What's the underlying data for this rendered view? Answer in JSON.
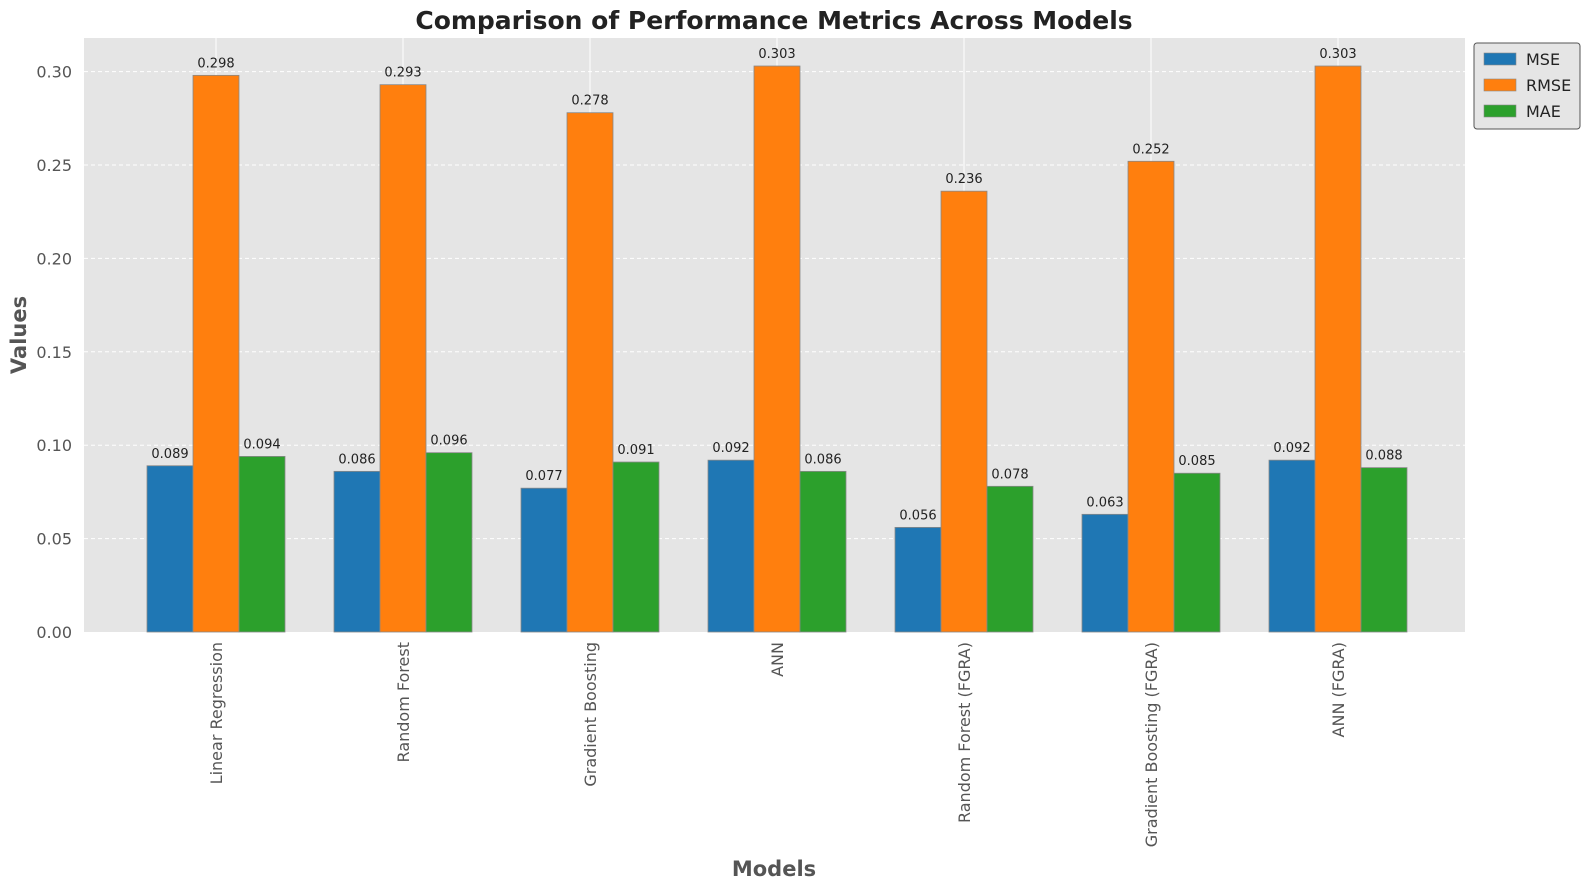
{
  "chart_data": {
    "type": "bar",
    "title": "Comparison of Performance Metrics Across Models",
    "xlabel": "Models",
    "ylabel": "Values",
    "categories": [
      "Linear Regression",
      "Random Forest",
      "Gradient Boosting",
      "ANN",
      "Random Forest (FGRA)",
      "Gradient Boosting (FGRA)",
      "ANN (FGRA)"
    ],
    "series": [
      {
        "name": "MSE",
        "color": "#1f77b4",
        "values": [
          0.089,
          0.086,
          0.077,
          0.092,
          0.056,
          0.063,
          0.092
        ],
        "labels": [
          "0.089",
          "0.086",
          "0.077",
          "0.092",
          "0.056",
          "0.063",
          "0.092"
        ]
      },
      {
        "name": "RMSE",
        "color": "#ff7f0e",
        "values": [
          0.298,
          0.293,
          0.278,
          0.303,
          0.236,
          0.252,
          0.303
        ],
        "labels": [
          "0.298",
          "0.293",
          "0.278",
          "0.303",
          "0.236",
          "0.252",
          "0.303"
        ]
      },
      {
        "name": "MAE",
        "color": "#2ca02c",
        "values": [
          0.094,
          0.096,
          0.091,
          0.086,
          0.078,
          0.085,
          0.088
        ],
        "labels": [
          "0.094",
          "0.096",
          "0.091",
          "0.086",
          "0.078",
          "0.085",
          "0.088"
        ]
      }
    ],
    "yticks": [
      "0.00",
      "0.05",
      "0.10",
      "0.15",
      "0.20",
      "0.25",
      "0.30"
    ],
    "ylim": [
      0,
      0.318
    ],
    "grid": true,
    "legend_position": "upper-right-outside",
    "background": "#e5e5e5"
  }
}
